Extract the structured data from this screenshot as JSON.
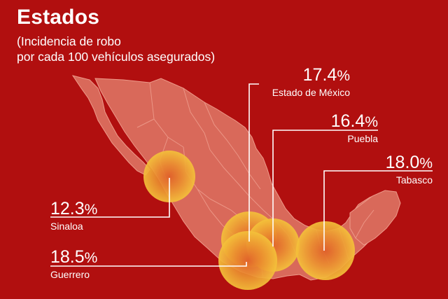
{
  "title": "Estados",
  "subtitle_line1": "(Incidencia de robo",
  "subtitle_line2": "por cada 100 vehículos asegurados)",
  "colors": {
    "background": "#b10f0f",
    "land": "#d9695a",
    "borders": "#ee9b8b",
    "bubble_outer": "#f2b632",
    "bubble_inner": "#e5702a",
    "leader_line": "#ffffff"
  },
  "states": [
    {
      "name": "Estado de México",
      "value": "17.4",
      "unit": "%"
    },
    {
      "name": "Puebla",
      "value": "16.4",
      "unit": "%"
    },
    {
      "name": "Tabasco",
      "value": "18.0",
      "unit": "%"
    },
    {
      "name": "Sinaloa",
      "value": "12.3",
      "unit": "%"
    },
    {
      "name": "Guerrero",
      "value": "18.5",
      "unit": "%"
    }
  ]
}
